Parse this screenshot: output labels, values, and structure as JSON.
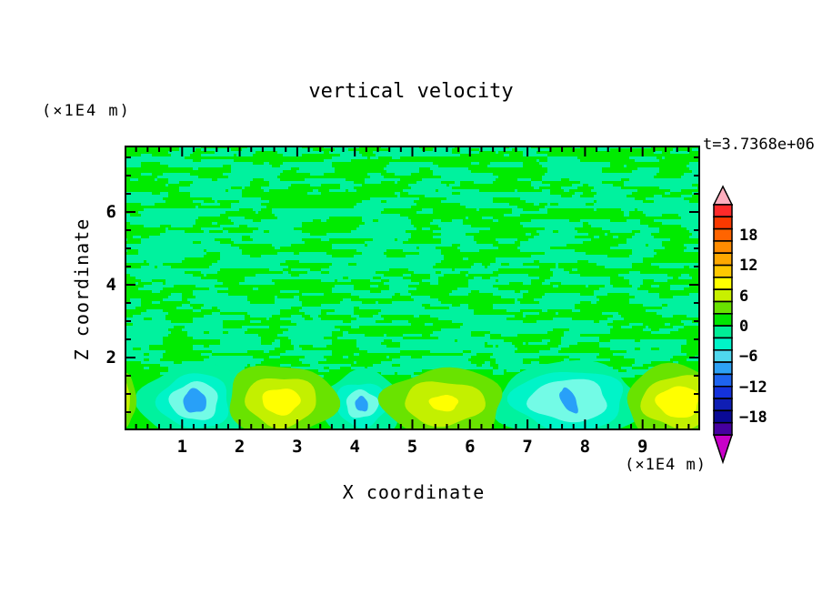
{
  "header": {
    "title": "vertical velocity",
    "top_left_unit": "(×1E4 m)",
    "time_label": "t=3.7368e+06"
  },
  "axes": {
    "xlabel": "X coordinate",
    "zlabel": "Z coordinate",
    "x_unit_label": "(×1E4 m)"
  },
  "chart_data": {
    "type": "filled-contour",
    "title": "vertical velocity",
    "xlabel": "X coordinate",
    "ylabel": "Z coordinate",
    "x_units": "×1E4 m",
    "z_units": "×1E4 m",
    "time_annotation": "t=3.7368e+06",
    "x_range": [
      0,
      10
    ],
    "z_range": [
      0,
      7.83
    ],
    "x_tick_values": [
      1,
      2,
      3,
      4,
      5,
      6,
      7,
      8,
      9
    ],
    "x_minor_step": 0.2,
    "z_tick_values": [
      2,
      4,
      6
    ],
    "z_minor_step": 0.5,
    "grid": false,
    "colorbar": {
      "position": "right",
      "contour_step_estimate": 3,
      "labels": [
        {
          "text": "18",
          "value": 18
        },
        {
          "text": "12",
          "value": 12
        },
        {
          "text": "6",
          "value": 6
        },
        {
          "text": "0",
          "value": 0
        },
        {
          "text": "−6",
          "value": -6
        },
        {
          "text": "−12",
          "value": -12
        },
        {
          "text": "−18",
          "value": -18
        }
      ],
      "over_color": "#FFAEBE",
      "under_color": "#C800C8",
      "segment_colors_top_to_bottom": [
        "#FF2A2A",
        "#FA3900",
        "#FF6400",
        "#FF8C00",
        "#FFA800",
        "#FFC800",
        "#FFFF00",
        "#C8F000",
        "#69E300",
        "#00E600",
        "#00EE96",
        "#00F4C8",
        "#4FD7EE",
        "#2DA1F5",
        "#1E64F0",
        "#1432DC",
        "#0F1EB4",
        "#0A0A96",
        "#4600A0"
      ]
    },
    "palette": {
      "background_positive": "#00EB00",
      "background_negative_patch": "#00F29E",
      "lawn": "#69E300",
      "chartreuse": "#C3F000",
      "yellow": "#FFFF00",
      "spring": "#00F29E",
      "aqua": "#00F4C8",
      "pale": "#73FBE6",
      "core": "#28A0F8"
    },
    "field_description": "Mostly near-zero vertical velocity aloft (interleaved weakly positive green and weakly negative spring-green streaks); a row of convection cells near the bottom boundary: warm updraft plumes (yellow cores ~ +6..9) and downdraft cells (blue cores ~ -12..-15).",
    "noise": {
      "seed": 7,
      "block": 3,
      "threshold": 0.5,
      "z_min": 1.5,
      "scale1": [
        30,
        6.5
      ],
      "scale2": [
        11,
        3.2
      ],
      "w1": 0.62,
      "w2": 0.38
    },
    "cells": {
      "updrafts": [
        {
          "x": 0.02,
          "z": 0.85,
          "rings": [
            {
              "color": "lawn",
              "rx": 0.17,
              "ry": 0.75
            },
            {
              "color": "chartreuse",
              "rx": 0.07,
              "ry": 0.45
            }
          ]
        },
        {
          "x": 2.72,
          "z": 0.8,
          "rings": [
            {
              "color": "lawn",
              "rx": 0.95,
              "ry": 1.0
            },
            {
              "color": "chartreuse",
              "rx": 0.62,
              "ry": 0.68
            },
            {
              "color": "yellow",
              "rx": 0.33,
              "ry": 0.36
            }
          ]
        },
        {
          "x": 5.55,
          "z": 0.75,
          "rings": [
            {
              "color": "lawn",
              "rx": 1.05,
              "ry": 0.95
            },
            {
              "color": "chartreuse",
              "rx": 0.7,
              "ry": 0.6
            },
            {
              "color": "yellow",
              "rx": 0.25,
              "ry": 0.22
            }
          ]
        },
        {
          "x": 9.62,
          "z": 0.78,
          "rings": [
            {
              "color": "lawn",
              "rx": 0.92,
              "ry": 1.0
            },
            {
              "color": "chartreuse",
              "rx": 0.62,
              "ry": 0.72
            },
            {
              "color": "yellow",
              "rx": 0.37,
              "ry": 0.43
            }
          ]
        }
      ],
      "downdrafts": [
        {
          "x": 1.22,
          "z": 0.8,
          "rings": [
            {
              "color": "spring",
              "rx": 0.95,
              "ry": 1.05
            },
            {
              "color": "aqua",
              "rx": 0.62,
              "ry": 0.75
            },
            {
              "color": "pale",
              "rx": 0.42,
              "ry": 0.52
            },
            {
              "color": "core",
              "rx": 0.2,
              "ry": 0.33,
              "rot": -0.4
            }
          ]
        },
        {
          "x": 4.12,
          "z": 0.72,
          "rings": [
            {
              "color": "spring",
              "rx": 0.7,
              "ry": 0.9
            },
            {
              "color": "aqua",
              "rx": 0.45,
              "ry": 0.6
            },
            {
              "color": "pale",
              "rx": 0.28,
              "ry": 0.38
            },
            {
              "color": "core",
              "rx": 0.11,
              "ry": 0.21,
              "rot": -0.35
            }
          ]
        },
        {
          "x": 7.72,
          "z": 0.82,
          "rings": [
            {
              "color": "spring",
              "rx": 1.28,
              "ry": 1.05
            },
            {
              "color": "aqua",
              "rx": 0.98,
              "ry": 0.82
            },
            {
              "color": "pale",
              "rx": 0.68,
              "ry": 0.58
            },
            {
              "color": "core",
              "rx": 0.12,
              "ry": 0.38,
              "rot": -0.5
            }
          ]
        }
      ]
    }
  }
}
